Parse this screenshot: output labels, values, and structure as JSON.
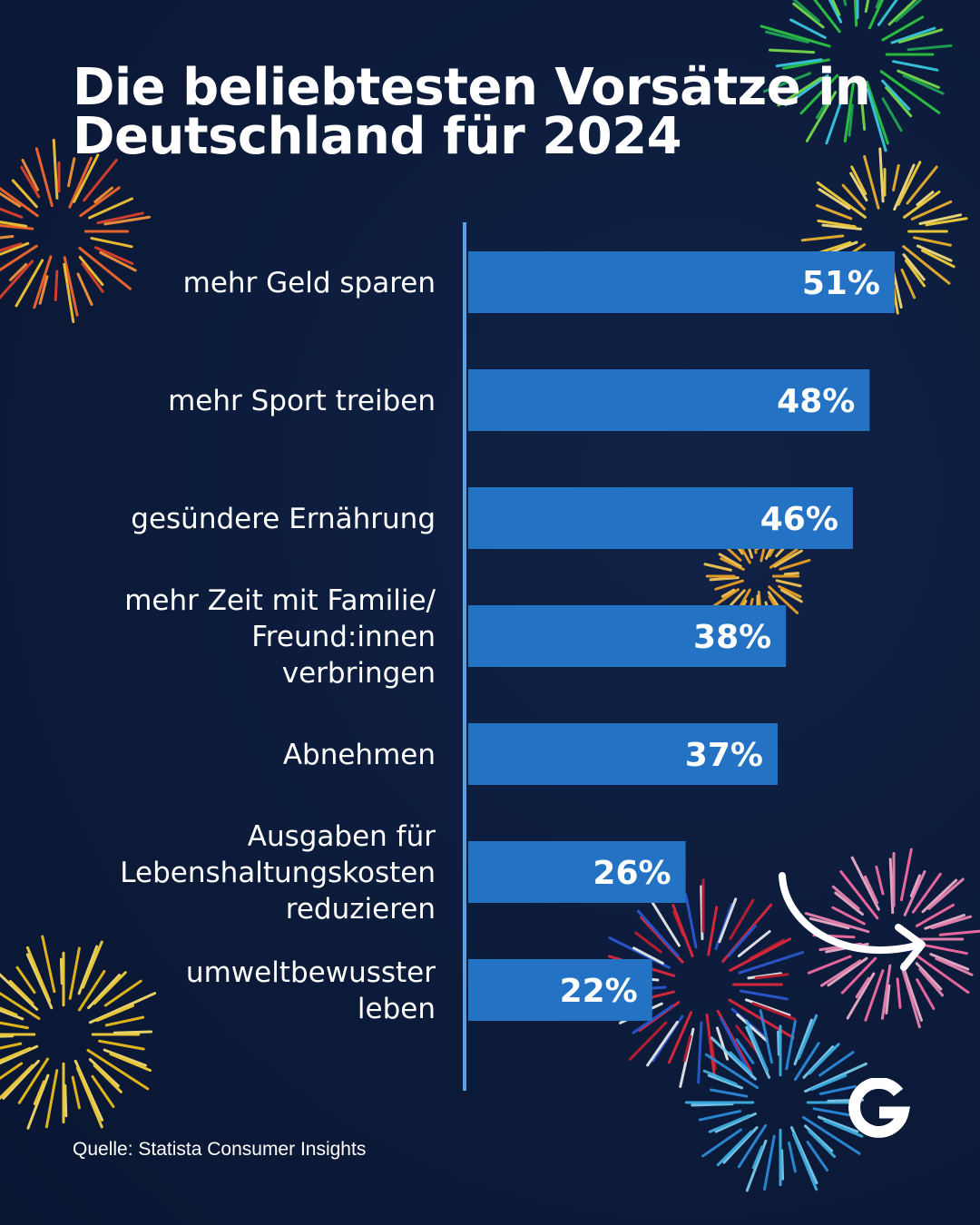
{
  "title_lines": [
    "Die beliebtesten Vorsätze in",
    "Deutschland für 2024"
  ],
  "source": "Quelle: Statista Consumer Insights",
  "colors": {
    "background": "#0c1b3a",
    "bar": "#2372c4",
    "axis": "#5aa0e6",
    "text": "#ffffff"
  },
  "icons": {
    "logo": "g-logo-icon",
    "arrow": "swipe-arrow-icon",
    "decoration": "fireworks"
  },
  "chart_data": {
    "type": "bar",
    "orientation": "horizontal",
    "categories": [
      [
        "mehr Geld sparen"
      ],
      [
        "mehr Sport treiben"
      ],
      [
        "gesündere Ernährung"
      ],
      [
        "mehr Zeit mit Familie/",
        "Freund:innen",
        "verbringen"
      ],
      [
        "Abnehmen"
      ],
      [
        "Ausgaben für",
        "Lebenshaltungskosten",
        "reduzieren"
      ],
      [
        "umweltbewusster",
        "leben"
      ]
    ],
    "values": [
      51,
      48,
      46,
      38,
      37,
      26,
      22
    ],
    "value_labels": [
      "51%",
      "48%",
      "46%",
      "38%",
      "37%",
      "26%",
      "22%"
    ],
    "unit": "%",
    "xlim": [
      0,
      51
    ],
    "grid": false,
    "legend": "none"
  }
}
